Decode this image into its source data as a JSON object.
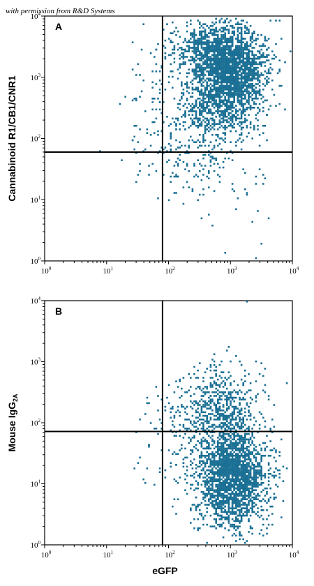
{
  "credit": "with permission from R&D Systems",
  "chart_data": [
    {
      "type": "scatter",
      "panel_label": "A",
      "xscale": "log",
      "yscale": "log",
      "xlim": [
        1,
        10000
      ],
      "ylim": [
        1,
        10000
      ],
      "xlabel": "",
      "ylabel": "Cannabinoid R1/CB1/CNR1",
      "gate": {
        "x": 80,
        "y": 60
      },
      "point_color": "#1a6f94",
      "clusters": [
        {
          "cx": 1000,
          "cy": 1300,
          "sx": 0.3,
          "sy": 0.35,
          "n": 1800
        },
        {
          "cx": 500,
          "cy": 3000,
          "sx": 0.35,
          "sy": 0.2,
          "n": 500
        },
        {
          "cx": 700,
          "cy": 300,
          "sx": 0.35,
          "sy": 0.3,
          "n": 450
        },
        {
          "cx": 350,
          "cy": 80,
          "sx": 0.5,
          "sy": 0.5,
          "n": 250
        },
        {
          "cx": 120,
          "cy": 600,
          "sx": 0.45,
          "sy": 0.6,
          "n": 120
        }
      ],
      "outliers": [
        [
          8,
          62
        ],
        [
          28,
          105
        ],
        [
          45,
          140
        ],
        [
          30,
          20
        ],
        [
          48,
          35
        ],
        [
          800,
          1.4
        ],
        [
          2600,
          1.1
        ],
        [
          3200,
          1.9
        ],
        [
          4100,
          5
        ],
        [
          2300,
          4.2
        ]
      ],
      "xticks": [
        {
          "base": "10",
          "exp": "0"
        },
        {
          "base": "10",
          "exp": "1"
        },
        {
          "base": "10",
          "exp": "2"
        },
        {
          "base": "10",
          "exp": "3"
        },
        {
          "base": "10",
          "exp": "4"
        }
      ],
      "yticks": [
        {
          "base": "10",
          "exp": "0"
        },
        {
          "base": "10",
          "exp": "1"
        },
        {
          "base": "10",
          "exp": "2"
        },
        {
          "base": "10",
          "exp": "3"
        },
        {
          "base": "10",
          "exp": "4"
        }
      ]
    },
    {
      "type": "scatter",
      "panel_label": "B",
      "xscale": "log",
      "yscale": "log",
      "xlim": [
        1,
        10000
      ],
      "ylim": [
        1,
        10000
      ],
      "xlabel": "eGFP",
      "ylabel": "Mouse IgG",
      "ylabel_sub": "2A",
      "gate": {
        "x": 80,
        "y": 72
      },
      "point_color": "#1a6f94",
      "clusters": [
        {
          "cx": 1100,
          "cy": 12,
          "sx": 0.28,
          "sy": 0.4,
          "n": 2000
        },
        {
          "cx": 700,
          "cy": 180,
          "sx": 0.35,
          "sy": 0.35,
          "n": 550
        },
        {
          "cx": 300,
          "cy": 40,
          "sx": 0.45,
          "sy": 0.45,
          "n": 200
        }
      ],
      "outliers": [
        [
          28,
          18
        ],
        [
          32,
          22
        ],
        [
          40,
          12
        ],
        [
          35,
          26
        ],
        [
          1800,
          9500
        ],
        [
          2700,
          9800
        ],
        [
          900,
          1500
        ],
        [
          1200,
          1200
        ]
      ],
      "xticks": [
        {
          "base": "10",
          "exp": "0"
        },
        {
          "base": "10",
          "exp": "1"
        },
        {
          "base": "10",
          "exp": "2"
        },
        {
          "base": "10",
          "exp": "3"
        },
        {
          "base": "10",
          "exp": "4"
        }
      ],
      "yticks": [
        {
          "base": "10",
          "exp": "0"
        },
        {
          "base": "10",
          "exp": "1"
        },
        {
          "base": "10",
          "exp": "2"
        },
        {
          "base": "10",
          "exp": "3"
        },
        {
          "base": "10",
          "exp": "4"
        }
      ]
    }
  ]
}
